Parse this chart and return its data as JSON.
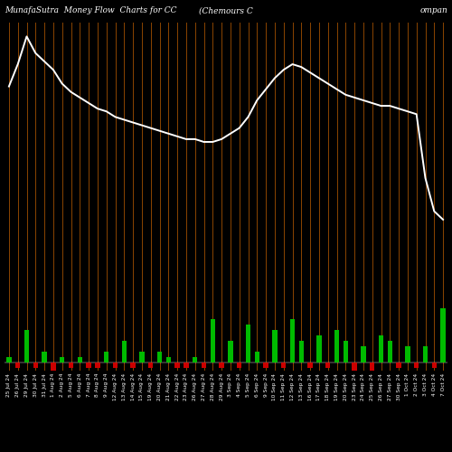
{
  "title_left": "MunafaSutra  Money Flow  Charts for CC",
  "title_mid": "(Chemours C",
  "title_right": "ompan",
  "bg_color": "#000000",
  "line_color": "#ffffff",
  "bar_positive_color": "#00bb00",
  "bar_negative_color": "#cc0000",
  "vline_color": "#8B4500",
  "n_bars": 50,
  "line_values": [
    78,
    86,
    96,
    90,
    87,
    84,
    79,
    76,
    74,
    72,
    70,
    69,
    67,
    66,
    65,
    64,
    63,
    62,
    61,
    60,
    59,
    59,
    58,
    58,
    59,
    61,
    63,
    67,
    73,
    77,
    81,
    84,
    86,
    85,
    83,
    81,
    79,
    77,
    75,
    74,
    73,
    72,
    71,
    71,
    70,
    69,
    68,
    45,
    33,
    30
  ],
  "bar_values": [
    1,
    -1,
    6,
    -1,
    2,
    -2,
    1,
    -1,
    1,
    -1,
    -1,
    2,
    -1,
    4,
    -1,
    2,
    -1,
    2,
    1,
    -1,
    -1,
    1,
    -1,
    8,
    -1,
    4,
    -1,
    7,
    2,
    -1,
    6,
    -1,
    8,
    4,
    -1,
    5,
    -1,
    6,
    4,
    -2,
    3,
    -2,
    5,
    4,
    -1,
    3,
    -1,
    3,
    -1,
    10
  ],
  "dates": [
    "25 Jul 24",
    "26 Jul 24",
    "29 Jul 24",
    "30 Jul 24",
    "31 Jul 24",
    "1 Aug 24",
    "2 Aug 24",
    "5 Aug 24",
    "6 Aug 24",
    "7 Aug 24",
    "8 Aug 24",
    "9 Aug 24",
    "12 Aug 24",
    "13 Aug 24",
    "14 Aug 24",
    "15 Aug 24",
    "19 Aug 24",
    "20 Aug 24",
    "21 Aug 24",
    "22 Aug 24",
    "23 Aug 24",
    "26 Aug 24",
    "27 Aug 24",
    "28 Aug 24",
    "29 Aug 24",
    "3 Sep 24",
    "4 Sep 24",
    "5 Sep 24",
    "6 Sep 24",
    "9 Sep 24",
    "10 Sep 24",
    "11 Sep 24",
    "12 Sep 24",
    "13 Sep 24",
    "16 Sep 24",
    "17 Sep 24",
    "18 Sep 24",
    "19 Sep 24",
    "20 Sep 24",
    "23 Sep 24",
    "24 Sep 24",
    "25 Sep 24",
    "26 Sep 24",
    "27 Sep 24",
    "30 Sep 24",
    "1 Oct 24",
    "2 Oct 24",
    "3 Oct 24",
    "4 Oct 24",
    "7 Oct 24"
  ],
  "figsize": [
    5.0,
    5.0
  ],
  "dpi": 100,
  "xlabel_fontsize": 4.2,
  "title_fontsize": 6.5,
  "tick_label_color": "#ffffff"
}
